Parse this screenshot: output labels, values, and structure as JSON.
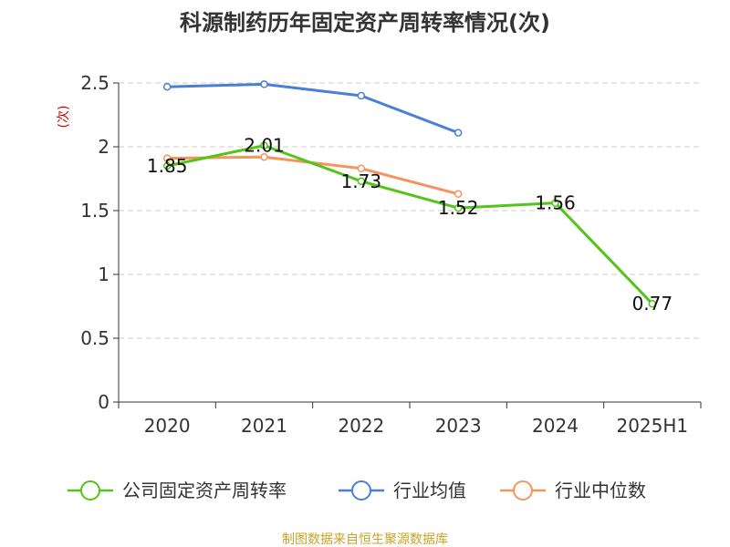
{
  "chart_data": {
    "type": "line",
    "title": "科源制药历年固定资产周转率情况(次)",
    "ylabel": "(次)",
    "xlabel": "",
    "categories": [
      "2020",
      "2021",
      "2022",
      "2023",
      "2024",
      "2025H1"
    ],
    "ylim": [
      0,
      2.5
    ],
    "yticks": [
      "0",
      "0.5",
      "1",
      "1.5",
      "2",
      "2.5"
    ],
    "grid": true,
    "legend_position": "bottom",
    "series": [
      {
        "name": "公司固定资产周转率",
        "color": "#52c41a",
        "values": [
          1.85,
          2.01,
          1.73,
          1.52,
          1.56,
          0.77
        ],
        "labels": [
          "1.85",
          "2.01",
          "1.73",
          "1.52",
          "1.56",
          "0.77"
        ]
      },
      {
        "name": "行业均值",
        "color": "#4a7fd8",
        "values": [
          2.47,
          2.49,
          2.4,
          2.11,
          null,
          null
        ]
      },
      {
        "name": "行业中位数",
        "color": "#f5945c",
        "values": [
          1.91,
          1.92,
          1.83,
          1.63,
          null,
          null
        ]
      }
    ],
    "source": "制图数据来自恒生聚源数据库"
  }
}
